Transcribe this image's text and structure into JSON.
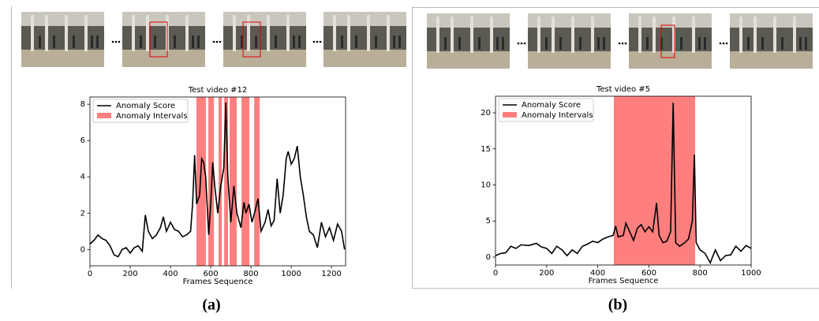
{
  "chart_data": [
    {
      "type": "line",
      "title": "Test video #12",
      "xlabel": "Frames Sequence",
      "caption": "(a)",
      "x": [
        0,
        20,
        40,
        60,
        80,
        100,
        120,
        140,
        160,
        180,
        200,
        220,
        240,
        260,
        275,
        290,
        310,
        330,
        350,
        365,
        380,
        400,
        420,
        440,
        460,
        480,
        500,
        510,
        520,
        530,
        545,
        555,
        565,
        575,
        590,
        600,
        610,
        620,
        635,
        650,
        665,
        675,
        685,
        700,
        715,
        730,
        750,
        765,
        775,
        790,
        805,
        820,
        835,
        850,
        870,
        885,
        900,
        915,
        930,
        945,
        960,
        975,
        985,
        1000,
        1015,
        1030,
        1045,
        1060,
        1075,
        1090,
        1110,
        1130,
        1150,
        1170,
        1190,
        1210,
        1230,
        1250,
        1265
      ],
      "series": [
        {
          "name": "Anomaly Score",
          "color": "#000000",
          "values": [
            0.3,
            0.5,
            0.8,
            0.6,
            0.5,
            0.2,
            -0.3,
            -0.4,
            0.0,
            0.1,
            -0.2,
            0.1,
            0.2,
            -0.1,
            1.9,
            1.0,
            0.6,
            0.8,
            1.2,
            1.8,
            1.0,
            1.5,
            1.1,
            1.0,
            0.7,
            0.8,
            1.0,
            2.5,
            5.2,
            2.5,
            3.0,
            5.0,
            4.8,
            4.0,
            0.8,
            2.5,
            4.8,
            3.5,
            2.0,
            3.5,
            4.5,
            8.1,
            4.0,
            1.5,
            3.5,
            2.0,
            1.2,
            2.6,
            2.0,
            2.5,
            1.5,
            2.1,
            2.8,
            1.0,
            1.5,
            2.2,
            1.3,
            1.6,
            3.9,
            2.0,
            3.0,
            5.0,
            5.4,
            4.7,
            5.0,
            5.7,
            4.0,
            3.0,
            1.8,
            1.0,
            0.8,
            0.1,
            1.5,
            0.7,
            1.2,
            0.5,
            1.4,
            1.0,
            0.0
          ]
        }
      ],
      "intervals": {
        "name": "Anomaly Intervals",
        "color": "#ff7f7f",
        "ranges": [
          [
            529,
            576
          ],
          [
            588,
            616
          ],
          [
            639,
            655
          ],
          [
            667,
            686
          ],
          [
            694,
            729
          ],
          [
            753,
            792
          ],
          [
            816,
            843
          ]
        ]
      },
      "xlim": [
        0,
        1270
      ],
      "ylim": [
        -0.9,
        8.4
      ],
      "xticks": [
        0,
        200,
        400,
        600,
        800,
        1000,
        1200
      ],
      "yticks": [
        0,
        2,
        4,
        6,
        8
      ],
      "legend": "upper left"
    },
    {
      "type": "line",
      "title": "Test video #5",
      "xlabel": "Frames Sequence",
      "caption": "(b)",
      "x": [
        0,
        20,
        40,
        60,
        80,
        100,
        130,
        160,
        180,
        200,
        220,
        240,
        260,
        280,
        300,
        320,
        340,
        360,
        380,
        400,
        420,
        440,
        460,
        470,
        480,
        500,
        510,
        525,
        540,
        555,
        570,
        585,
        600,
        615,
        630,
        640,
        655,
        670,
        685,
        695,
        705,
        720,
        740,
        755,
        770,
        778,
        785,
        800,
        820,
        840,
        860,
        880,
        900,
        920,
        940,
        960,
        980,
        1000
      ],
      "series": [
        {
          "name": "Anomaly Score",
          "color": "#000000",
          "values": [
            0.2,
            0.5,
            0.6,
            1.5,
            1.2,
            1.7,
            1.6,
            1.9,
            1.4,
            1.2,
            0.5,
            1.5,
            1.0,
            0.2,
            1.0,
            0.5,
            1.5,
            1.8,
            2.2,
            2.0,
            2.5,
            2.8,
            3.0,
            4.3,
            2.8,
            3.0,
            4.7,
            3.5,
            2.3,
            4.0,
            4.5,
            3.5,
            4.2,
            3.5,
            7.5,
            3.0,
            2.0,
            2.2,
            3.5,
            21.4,
            2.0,
            1.5,
            2.0,
            2.5,
            5.0,
            14.2,
            2.0,
            1.0,
            0.5,
            -0.8,
            1.0,
            -0.5,
            0.2,
            0.3,
            1.5,
            0.8,
            1.6,
            1.2
          ]
        }
      ],
      "intervals": {
        "name": "Anomaly Intervals",
        "color": "#ff7f7f",
        "ranges": [
          [
            463,
            781
          ]
        ]
      },
      "xlim": [
        0,
        1000
      ],
      "ylim": [
        -1.1,
        22.3
      ],
      "xticks": [
        0,
        200,
        400,
        600,
        800,
        1000
      ],
      "yticks": [
        0,
        5,
        10,
        15,
        20
      ],
      "legend": "upper left"
    }
  ]
}
